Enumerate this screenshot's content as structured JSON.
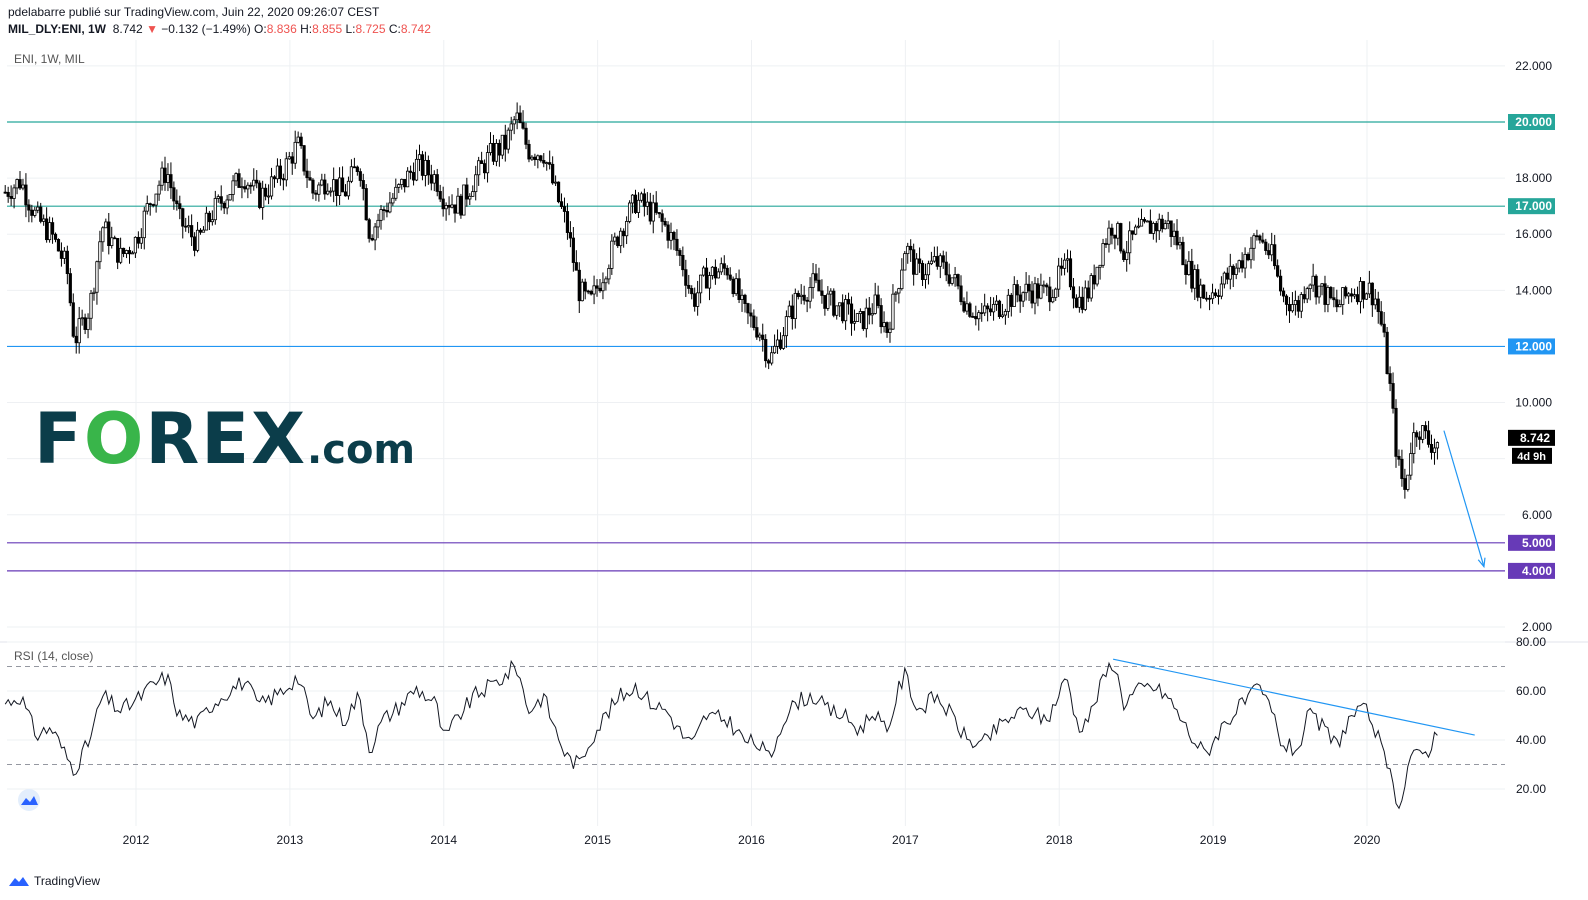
{
  "header": {
    "line1": "pdelabarre publié sur TradingView.com, Juin 22, 2020 09:26:07 CEST",
    "symbol": "MIL_DLY:ENI, 1W",
    "last": "8.742",
    "change": "−0.132 (−1.49%)",
    "o_label": "O:",
    "o": "8.836",
    "h_label": "H:",
    "h": "8.855",
    "l_label": "L:",
    "l": "8.725",
    "c_label": "C:",
    "c": "8.742"
  },
  "main_pane_label": "ENI, 1W, MIL",
  "rsi_pane_label": "RSI (14, close)",
  "price_tag": "8.742",
  "countdown_tag": "4d 9h",
  "logo": {
    "part1": "F",
    "part2": "O",
    "part3": "REX",
    "part4": ".com"
  },
  "footer": {
    "brand": "TradingView"
  },
  "colors": {
    "teal_line": "#26a69a",
    "blue_line": "#2196f3",
    "purple_line": "#673ab7",
    "candle": "#000000",
    "grid": "#eef0f3"
  },
  "chart_data": [
    {
      "type": "candlestick",
      "title": "ENI, 1W, MIL",
      "x_ticks": [
        "2012",
        "2013",
        "2014",
        "2015",
        "2016",
        "2017",
        "2018",
        "2019",
        "2020"
      ],
      "y_ticks": [
        "2.000",
        "4.000",
        "6.000",
        "8.000",
        "10.000",
        "12.000",
        "14.000",
        "16.000",
        "18.000",
        "20.000",
        "22.000"
      ],
      "ylim": [
        1.4,
        22.4
      ],
      "xlim": [
        2011.15,
        2020.9
      ],
      "horizontal_levels": [
        {
          "value": 20.0,
          "label": "20.000",
          "color": "#26a69a"
        },
        {
          "value": 17.0,
          "label": "17.000",
          "color": "#26a69a"
        },
        {
          "value": 12.0,
          "label": "12.000",
          "color": "#2196f3"
        },
        {
          "value": 5.0,
          "label": "5.000",
          "color": "#673ab7"
        },
        {
          "value": 4.0,
          "label": "4.000",
          "color": "#673ab7"
        }
      ],
      "price_path": [
        [
          2011.15,
          17.5
        ],
        [
          2011.25,
          17.9
        ],
        [
          2011.35,
          16.6
        ],
        [
          2011.45,
          16.0
        ],
        [
          2011.55,
          14.8
        ],
        [
          2011.6,
          12.2
        ],
        [
          2011.7,
          13.4
        ],
        [
          2011.78,
          16.3
        ],
        [
          2011.9,
          15.2
        ],
        [
          2012.0,
          15.8
        ],
        [
          2012.1,
          17.3
        ],
        [
          2012.2,
          18.3
        ],
        [
          2012.28,
          16.5
        ],
        [
          2012.4,
          15.7
        ],
        [
          2012.5,
          16.8
        ],
        [
          2012.6,
          17.5
        ],
        [
          2012.7,
          18.1
        ],
        [
          2012.8,
          17.3
        ],
        [
          2012.95,
          18.2
        ],
        [
          2013.05,
          19.2
        ],
        [
          2013.15,
          17.5
        ],
        [
          2013.25,
          18.0
        ],
        [
          2013.35,
          17.4
        ],
        [
          2013.45,
          18.6
        ],
        [
          2013.52,
          16.0
        ],
        [
          2013.6,
          16.8
        ],
        [
          2013.7,
          17.5
        ],
        [
          2013.82,
          18.5
        ],
        [
          2013.95,
          18.0
        ],
        [
          2014.0,
          17.3
        ],
        [
          2014.1,
          17.0
        ],
        [
          2014.2,
          18.0
        ],
        [
          2014.3,
          18.8
        ],
        [
          2014.4,
          19.2
        ],
        [
          2014.47,
          20.2
        ],
        [
          2014.55,
          19.0
        ],
        [
          2014.65,
          18.9
        ],
        [
          2014.72,
          17.6
        ],
        [
          2014.8,
          16.3
        ],
        [
          2014.88,
          14.0
        ],
        [
          2014.95,
          13.5
        ],
        [
          2015.05,
          14.8
        ],
        [
          2015.15,
          16.2
        ],
        [
          2015.25,
          17.2
        ],
        [
          2015.35,
          16.8
        ],
        [
          2015.45,
          16.2
        ],
        [
          2015.55,
          15.0
        ],
        [
          2015.62,
          13.6
        ],
        [
          2015.7,
          14.5
        ],
        [
          2015.85,
          14.8
        ],
        [
          2015.95,
          13.2
        ],
        [
          2016.05,
          12.6
        ],
        [
          2016.12,
          11.5
        ],
        [
          2016.2,
          12.5
        ],
        [
          2016.3,
          13.8
        ],
        [
          2016.4,
          14.2
        ],
        [
          2016.5,
          13.6
        ],
        [
          2016.6,
          13.3
        ],
        [
          2016.7,
          12.8
        ],
        [
          2016.8,
          13.5
        ],
        [
          2016.88,
          12.6
        ],
        [
          2016.95,
          14.2
        ],
        [
          2017.0,
          15.6
        ],
        [
          2017.08,
          14.6
        ],
        [
          2017.2,
          15.0
        ],
        [
          2017.3,
          14.5
        ],
        [
          2017.4,
          13.5
        ],
        [
          2017.5,
          13.1
        ],
        [
          2017.6,
          13.4
        ],
        [
          2017.7,
          13.8
        ],
        [
          2017.8,
          14.0
        ],
        [
          2017.92,
          13.9
        ],
        [
          2018.05,
          14.8
        ],
        [
          2018.12,
          13.6
        ],
        [
          2018.2,
          14.0
        ],
        [
          2018.28,
          15.6
        ],
        [
          2018.35,
          16.4
        ],
        [
          2018.42,
          15.4
        ],
        [
          2018.5,
          16.0
        ],
        [
          2018.6,
          16.3
        ],
        [
          2018.7,
          16.4
        ],
        [
          2018.78,
          15.6
        ],
        [
          2018.85,
          14.6
        ],
        [
          2018.95,
          13.8
        ],
        [
          2019.05,
          14.2
        ],
        [
          2019.15,
          14.8
        ],
        [
          2019.25,
          15.6
        ],
        [
          2019.3,
          15.9
        ],
        [
          2019.38,
          15.2
        ],
        [
          2019.45,
          13.8
        ],
        [
          2019.55,
          13.4
        ],
        [
          2019.62,
          14.5
        ],
        [
          2019.7,
          14.0
        ],
        [
          2019.8,
          13.4
        ],
        [
          2019.9,
          14.0
        ],
        [
          2020.0,
          14.1
        ],
        [
          2020.05,
          13.8
        ],
        [
          2020.1,
          12.6
        ],
        [
          2020.15,
          10.5
        ],
        [
          2020.2,
          7.8
        ],
        [
          2020.25,
          6.8
        ],
        [
          2020.28,
          8.4
        ],
        [
          2020.33,
          9.2
        ],
        [
          2020.4,
          8.6
        ],
        [
          2020.45,
          8.5
        ],
        [
          2020.47,
          8.742
        ]
      ],
      "arrow": {
        "from": [
          2020.5,
          9.0
        ],
        "to": [
          2020.76,
          4.15
        ],
        "color": "#2196f3"
      }
    },
    {
      "type": "line",
      "title": "RSI (14, close)",
      "y_ticks": [
        "20.00",
        "40.00",
        "60.00",
        "80.00"
      ],
      "ylim": [
        12,
        80
      ],
      "dashed_levels": [
        70,
        30
      ],
      "series": [
        {
          "values": [
            [
              2011.15,
              55
            ],
            [
              2011.25,
              58
            ],
            [
              2011.35,
              42
            ],
            [
              2011.45,
              45
            ],
            [
              2011.55,
              33
            ],
            [
              2011.6,
              28
            ],
            [
              2011.7,
              40
            ],
            [
              2011.78,
              58
            ],
            [
              2011.9,
              52
            ],
            [
              2012.0,
              56
            ],
            [
              2012.1,
              62
            ],
            [
              2012.2,
              66
            ],
            [
              2012.28,
              50
            ],
            [
              2012.4,
              47
            ],
            [
              2012.5,
              55
            ],
            [
              2012.6,
              60
            ],
            [
              2012.7,
              64
            ],
            [
              2012.8,
              54
            ],
            [
              2012.95,
              60
            ],
            [
              2013.05,
              66
            ],
            [
              2013.15,
              48
            ],
            [
              2013.25,
              56
            ],
            [
              2013.35,
              48
            ],
            [
              2013.45,
              58
            ],
            [
              2013.52,
              36
            ],
            [
              2013.6,
              48
            ],
            [
              2013.7,
              53
            ],
            [
              2013.82,
              61
            ],
            [
              2013.95,
              55
            ],
            [
              2014.0,
              40
            ],
            [
              2014.1,
              50
            ],
            [
              2014.2,
              58
            ],
            [
              2014.3,
              62
            ],
            [
              2014.4,
              66
            ],
            [
              2014.47,
              71
            ],
            [
              2014.55,
              52
            ],
            [
              2014.65,
              58
            ],
            [
              2014.72,
              45
            ],
            [
              2014.8,
              33
            ],
            [
              2014.88,
              30
            ],
            [
              2014.95,
              40
            ],
            [
              2015.05,
              50
            ],
            [
              2015.15,
              58
            ],
            [
              2015.25,
              62
            ],
            [
              2015.35,
              55
            ],
            [
              2015.45,
              52
            ],
            [
              2015.55,
              42
            ],
            [
              2015.62,
              38
            ],
            [
              2015.7,
              50
            ],
            [
              2015.85,
              48
            ],
            [
              2015.95,
              40
            ],
            [
              2016.05,
              38
            ],
            [
              2016.12,
              32
            ],
            [
              2016.2,
              48
            ],
            [
              2016.3,
              56
            ],
            [
              2016.4,
              58
            ],
            [
              2016.5,
              52
            ],
            [
              2016.6,
              50
            ],
            [
              2016.7,
              44
            ],
            [
              2016.8,
              52
            ],
            [
              2016.88,
              42
            ],
            [
              2016.95,
              60
            ],
            [
              2017.0,
              67
            ],
            [
              2017.08,
              52
            ],
            [
              2017.2,
              58
            ],
            [
              2017.3,
              50
            ],
            [
              2017.4,
              40
            ],
            [
              2017.5,
              38
            ],
            [
              2017.6,
              45
            ],
            [
              2017.7,
              50
            ],
            [
              2017.8,
              52
            ],
            [
              2017.92,
              48
            ],
            [
              2018.05,
              66
            ],
            [
              2018.12,
              45
            ],
            [
              2018.2,
              50
            ],
            [
              2018.28,
              64
            ],
            [
              2018.35,
              73
            ],
            [
              2018.42,
              55
            ],
            [
              2018.5,
              60
            ],
            [
              2018.6,
              62
            ],
            [
              2018.7,
              58
            ],
            [
              2018.78,
              50
            ],
            [
              2018.85,
              42
            ],
            [
              2018.95,
              34
            ],
            [
              2019.05,
              45
            ],
            [
              2019.15,
              52
            ],
            [
              2019.25,
              58
            ],
            [
              2019.3,
              61
            ],
            [
              2019.38,
              52
            ],
            [
              2019.45,
              38
            ],
            [
              2019.55,
              36
            ],
            [
              2019.62,
              50
            ],
            [
              2019.7,
              46
            ],
            [
              2019.8,
              38
            ],
            [
              2019.9,
              50
            ],
            [
              2020.0,
              52
            ],
            [
              2020.05,
              45
            ],
            [
              2020.1,
              35
            ],
            [
              2020.15,
              25
            ],
            [
              2020.2,
              14
            ],
            [
              2020.25,
              22
            ],
            [
              2020.28,
              35
            ],
            [
              2020.33,
              33
            ],
            [
              2020.4,
              36
            ],
            [
              2020.45,
              43
            ],
            [
              2020.47,
              41
            ]
          ]
        }
      ],
      "trendline": {
        "from": [
          2018.35,
          73
        ],
        "to": [
          2020.7,
          42
        ],
        "color": "#2196f3"
      }
    }
  ]
}
